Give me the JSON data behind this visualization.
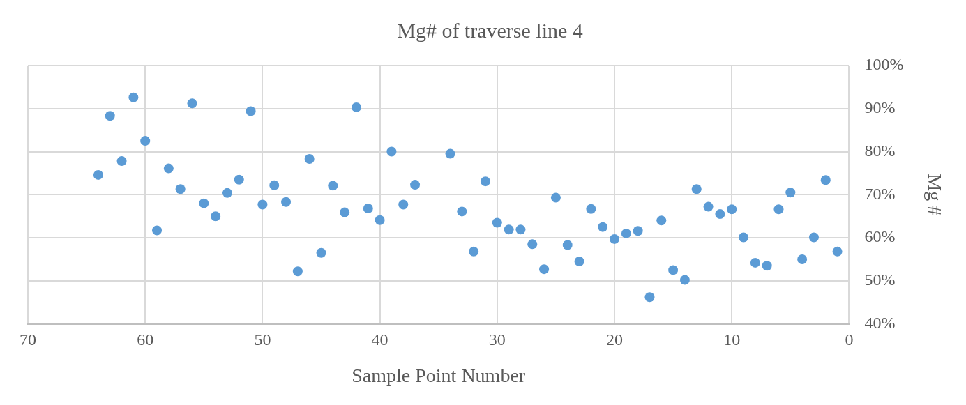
{
  "chart_data": {
    "type": "scatter",
    "title": "Mg# of traverse line 4",
    "xlabel": "Sample Point Number",
    "ylabel": "Mg #",
    "x": [
      64,
      63,
      62,
      61,
      60,
      59,
      58,
      57,
      56,
      55,
      54,
      53,
      52,
      51,
      50,
      49,
      48,
      47,
      46,
      45,
      44,
      43,
      42,
      41,
      40,
      39,
      38,
      37,
      34,
      33,
      32,
      31,
      30,
      29,
      28,
      27,
      26,
      25,
      24,
      23,
      22,
      21,
      20,
      19,
      18,
      17,
      16,
      15,
      14,
      13,
      12,
      11,
      10,
      9,
      8,
      7,
      6,
      5,
      4,
      3,
      2,
      1
    ],
    "series": [
      {
        "color": "#5b9bd5",
        "values": [
          74.6,
          88.3,
          77.8,
          92.6,
          82.5,
          61.7,
          76.1,
          71.3,
          91.2,
          68.0,
          65.0,
          70.4,
          73.5,
          89.4,
          67.7,
          72.2,
          68.3,
          52.2,
          78.3,
          56.5,
          72.1,
          65.9,
          90.3,
          66.8,
          64.1,
          80.0,
          67.7,
          72.3,
          79.5,
          66.1,
          56.8,
          73.1,
          63.5,
          61.9,
          61.9,
          58.5,
          52.7,
          69.3,
          58.3,
          54.5,
          66.7,
          62.5,
          59.7,
          61.0,
          61.6,
          46.2,
          64.0,
          52.5,
          50.2,
          71.3,
          67.2,
          65.5,
          66.6,
          60.1,
          54.2,
          53.5,
          66.6,
          70.5,
          55.0,
          60.1,
          73.4,
          56.8
        ]
      }
    ],
    "xlim": [
      70,
      0
    ],
    "xticks": [
      70,
      60,
      50,
      40,
      30,
      20,
      10,
      0
    ],
    "ylim": [
      40,
      100
    ],
    "yticks": [
      {
        "value": 40,
        "label": "40%"
      },
      {
        "value": 50,
        "label": "50%"
      },
      {
        "value": 60,
        "label": "60%"
      },
      {
        "value": 70,
        "label": "70%"
      },
      {
        "value": 80,
        "label": "80%"
      },
      {
        "value": 90,
        "label": "90%"
      },
      {
        "value": 100,
        "label": "100%"
      }
    ],
    "grid": true,
    "legend": false,
    "marker": "circle"
  }
}
